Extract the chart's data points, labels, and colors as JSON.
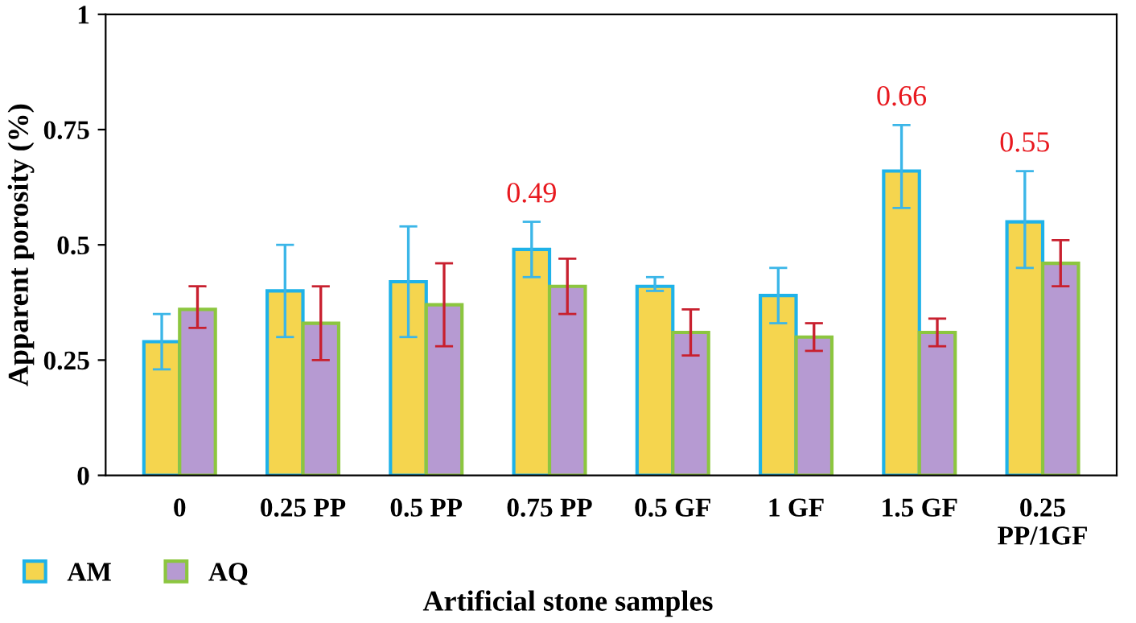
{
  "chart_data": {
    "type": "bar",
    "xlabel": "Artificial stone samples",
    "ylabel": "Apparent porosity (%)",
    "categories": [
      "0",
      "0.25 PP",
      "0.5 PP",
      "0.75 PP",
      "0.5 GF",
      "1 GF",
      "1.5 GF",
      "0.25\nPP/1GF"
    ],
    "series": [
      {
        "name": "AM",
        "color": "#f5d54e",
        "values": [
          0.29,
          0.4,
          0.42,
          0.49,
          0.41,
          0.39,
          0.66,
          0.55
        ],
        "errors": [
          [
            0.23,
            0.35
          ],
          [
            0.3,
            0.5
          ],
          [
            0.3,
            0.54
          ],
          [
            0.43,
            0.55
          ],
          [
            0.4,
            0.43
          ],
          [
            0.33,
            0.45
          ],
          [
            0.58,
            0.76
          ],
          [
            0.45,
            0.66
          ]
        ],
        "value_labels": [
          null,
          null,
          null,
          "0.49",
          null,
          null,
          "0.66",
          "0.55"
        ]
      },
      {
        "name": "AQ",
        "color": "#b69ad2",
        "values": [
          0.36,
          0.33,
          0.37,
          0.41,
          0.31,
          0.3,
          0.31,
          0.46
        ],
        "errors": [
          [
            0.32,
            0.41
          ],
          [
            0.25,
            0.41
          ],
          [
            0.28,
            0.46
          ],
          [
            0.35,
            0.47
          ],
          [
            0.26,
            0.36
          ],
          [
            0.27,
            0.33
          ],
          [
            0.28,
            0.34
          ],
          [
            0.41,
            0.51
          ]
        ]
      }
    ],
    "ylim": [
      0,
      1
    ],
    "yticks": [
      0,
      {
        "value": 0.25,
        "label": "0.25"
      },
      {
        "value": 0.5,
        "label": "0.5"
      },
      {
        "value": 0.75,
        "label": "0.75"
      },
      1
    ],
    "grid": false,
    "legend": "bottom left"
  }
}
